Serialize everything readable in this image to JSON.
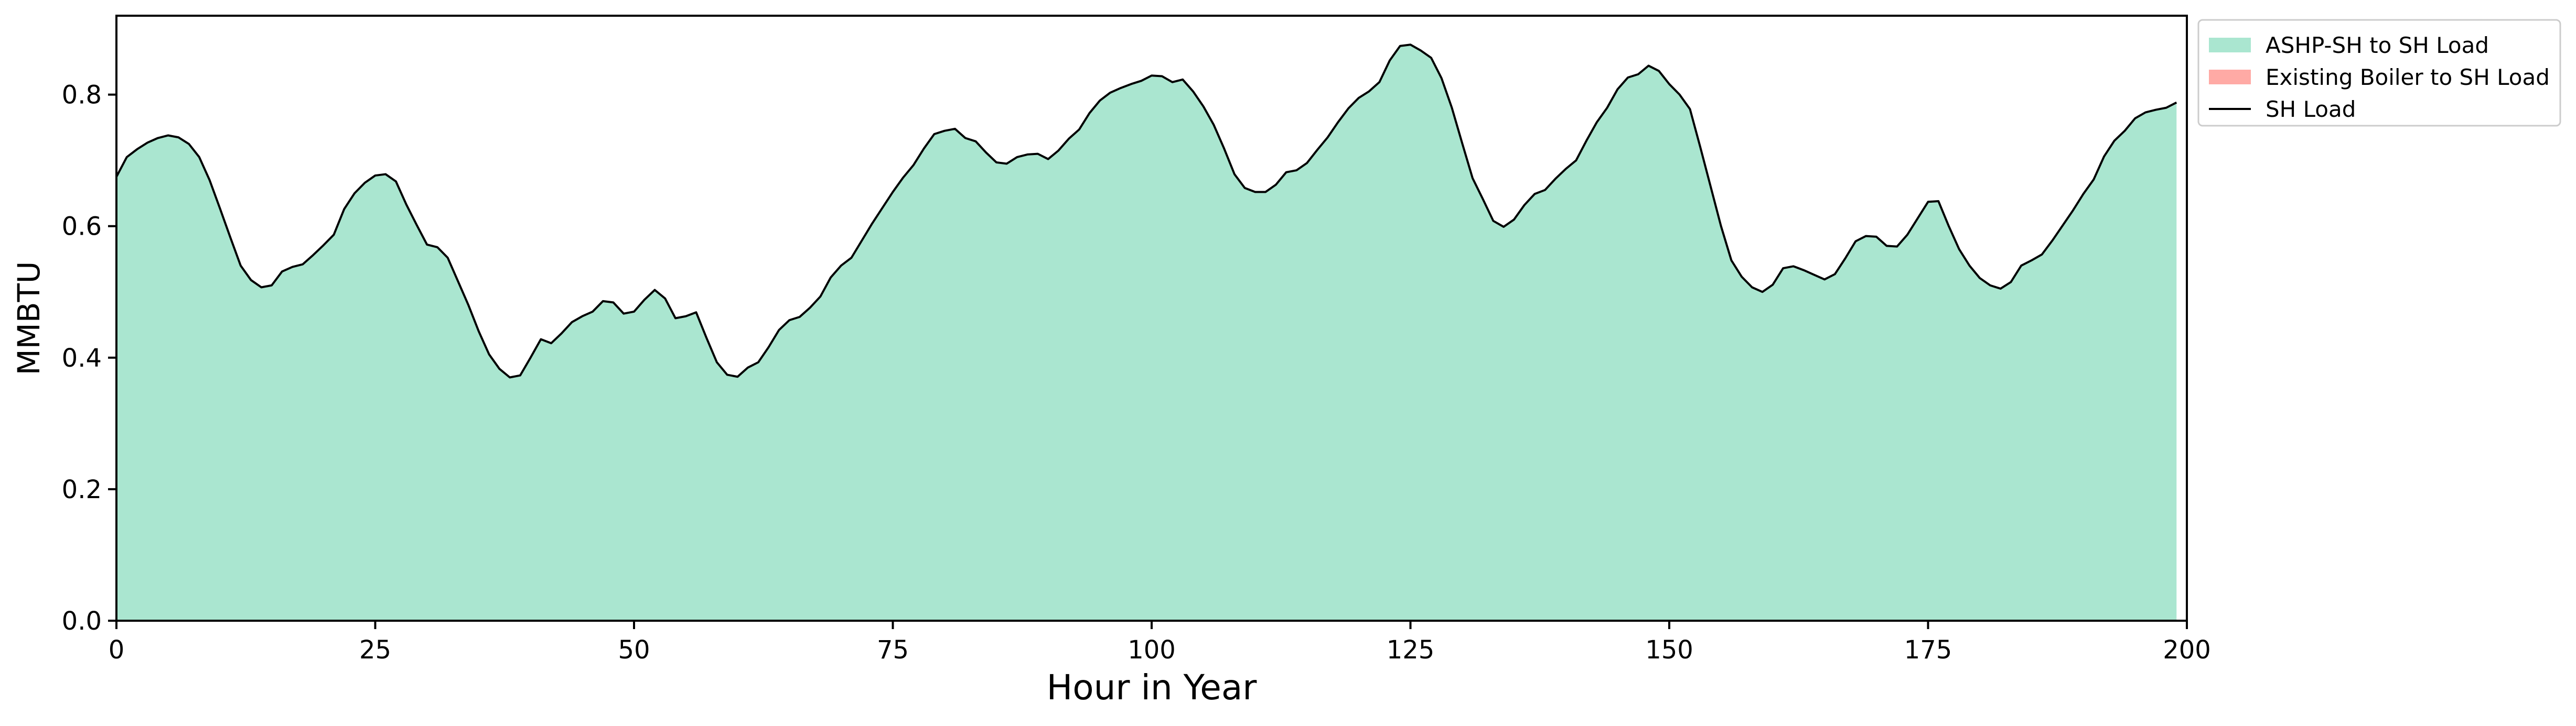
{
  "colors": {
    "ashp_fill": "#aae6d0",
    "boiler_fill": "#ffaaa5",
    "load_line": "#000000",
    "axes": "#000000",
    "legend_border": "#cccccc"
  },
  "chart_data": {
    "type": "area",
    "title": "",
    "xlabel": "Hour in Year",
    "ylabel": "MMBTU",
    "xlim": [
      0,
      200
    ],
    "ylim": [
      0,
      0.92
    ],
    "xticks": [
      0,
      25,
      50,
      75,
      100,
      125,
      150,
      175,
      200
    ],
    "xtick_labels": [
      "0",
      "25",
      "50",
      "75",
      "100",
      "125",
      "150",
      "175",
      "200"
    ],
    "yticks": [
      0.0,
      0.2,
      0.4,
      0.6,
      0.8
    ],
    "ytick_labels": [
      "0.0",
      "0.2",
      "0.4",
      "0.6",
      "0.8"
    ],
    "grid": false,
    "legend_position": "outside-top-right",
    "legend": [
      {
        "label": "ASHP-SH to SH Load",
        "kind": "area",
        "color": "#aae6d0"
      },
      {
        "label": "Existing Boiler to SH Load",
        "kind": "area",
        "color": "#ffaaa5"
      },
      {
        "label": "SH Load",
        "kind": "line",
        "color": "#000000"
      }
    ],
    "x": [
      0,
      1,
      2,
      3,
      4,
      5,
      6,
      7,
      8,
      9,
      10,
      11,
      12,
      13,
      14,
      15,
      16,
      17,
      18,
      19,
      20,
      21,
      22,
      23,
      24,
      25,
      26,
      27,
      28,
      29,
      30,
      31,
      32,
      33,
      34,
      35,
      36,
      37,
      38,
      39,
      40,
      41,
      42,
      43,
      44,
      45,
      46,
      47,
      48,
      49,
      50,
      51,
      52,
      53,
      54,
      55,
      56,
      57,
      58,
      59,
      60,
      61,
      62,
      63,
      64,
      65,
      66,
      67,
      68,
      69,
      70,
      71,
      72,
      73,
      74,
      75,
      76,
      77,
      78,
      79,
      80,
      81,
      82,
      83,
      84,
      85,
      86,
      87,
      88,
      89,
      90,
      91,
      92,
      93,
      94,
      95,
      96,
      97,
      98,
      99,
      100,
      101,
      102,
      103,
      104,
      105,
      106,
      107,
      108,
      109,
      110,
      111,
      112,
      113,
      114,
      115,
      116,
      117,
      118,
      119,
      120,
      121,
      122,
      123,
      124,
      125,
      126,
      127,
      128,
      129,
      130,
      131,
      132,
      133,
      134,
      135,
      136,
      137,
      138,
      139,
      140,
      141,
      142,
      143,
      144,
      145,
      146,
      147,
      148,
      149,
      150,
      151,
      152,
      153,
      154,
      155,
      156,
      157,
      158,
      159,
      160,
      161,
      162,
      163,
      164,
      165,
      166,
      167,
      168,
      169,
      170,
      171,
      172,
      173,
      174,
      175,
      176,
      177,
      178,
      179,
      180,
      181,
      182,
      183,
      184,
      185,
      186,
      187,
      188,
      189,
      190,
      191,
      192,
      193,
      194,
      195,
      196,
      197,
      198,
      199
    ],
    "series": [
      {
        "name": "ASHP-SH to SH Load",
        "type": "area",
        "values": [
          0.675,
          0.705,
          0.717,
          0.727,
          0.734,
          0.738,
          0.735,
          0.725,
          0.705,
          0.67,
          0.627,
          0.583,
          0.54,
          0.518,
          0.507,
          0.51,
          0.531,
          0.538,
          0.542,
          0.556,
          0.571,
          0.587,
          0.626,
          0.65,
          0.666,
          0.677,
          0.679,
          0.668,
          0.633,
          0.602,
          0.572,
          0.568,
          0.552,
          0.516,
          0.48,
          0.44,
          0.405,
          0.383,
          0.37,
          0.373,
          0.4,
          0.428,
          0.422,
          0.437,
          0.454,
          0.463,
          0.47,
          0.486,
          0.484,
          0.467,
          0.47,
          0.488,
          0.503,
          0.49,
          0.46,
          0.463,
          0.469,
          0.43,
          0.393,
          0.374,
          0.371,
          0.385,
          0.393,
          0.416,
          0.442,
          0.457,
          0.462,
          0.476,
          0.493,
          0.522,
          0.54,
          0.552,
          0.578,
          0.604,
          0.628,
          0.652,
          0.674,
          0.693,
          0.718,
          0.74,
          0.745,
          0.748,
          0.734,
          0.729,
          0.712,
          0.697,
          0.695,
          0.705,
          0.709,
          0.71,
          0.702,
          0.715,
          0.733,
          0.747,
          0.772,
          0.791,
          0.803,
          0.81,
          0.816,
          0.821,
          0.829,
          0.828,
          0.819,
          0.823,
          0.805,
          0.782,
          0.754,
          0.718,
          0.679,
          0.658,
          0.652,
          0.652,
          0.663,
          0.682,
          0.685,
          0.696,
          0.716,
          0.735,
          0.758,
          0.779,
          0.795,
          0.805,
          0.819,
          0.852,
          0.874,
          0.876,
          0.867,
          0.856,
          0.825,
          0.78,
          0.726,
          0.673,
          0.641,
          0.608,
          0.599,
          0.61,
          0.632,
          0.649,
          0.655,
          0.672,
          0.687,
          0.7,
          0.73,
          0.758,
          0.78,
          0.808,
          0.826,
          0.831,
          0.844,
          0.836,
          0.816,
          0.8,
          0.778,
          0.72,
          0.66,
          0.6,
          0.548,
          0.523,
          0.507,
          0.5,
          0.511,
          0.536,
          0.539,
          0.533,
          0.526,
          0.519,
          0.527,
          0.551,
          0.577,
          0.585,
          0.584,
          0.57,
          0.569,
          0.587,
          0.612,
          0.637,
          0.638,
          0.6,
          0.565,
          0.54,
          0.521,
          0.51,
          0.505,
          0.515,
          0.54,
          0.548,
          0.557,
          0.578,
          0.601,
          0.624,
          0.649,
          0.671,
          0.706,
          0.73,
          0.745,
          0.764,
          0.773,
          0.777,
          0.78,
          0.788
        ]
      },
      {
        "name": "Existing Boiler to SH Load",
        "type": "area",
        "values": [
          0,
          0,
          0,
          0,
          0,
          0,
          0,
          0,
          0,
          0,
          0,
          0,
          0,
          0,
          0,
          0,
          0,
          0,
          0,
          0,
          0,
          0,
          0,
          0,
          0,
          0,
          0,
          0,
          0,
          0,
          0,
          0,
          0,
          0,
          0,
          0,
          0,
          0,
          0,
          0,
          0,
          0,
          0,
          0,
          0,
          0,
          0,
          0,
          0,
          0,
          0,
          0,
          0,
          0,
          0,
          0,
          0,
          0,
          0,
          0,
          0,
          0,
          0,
          0,
          0,
          0,
          0,
          0,
          0,
          0,
          0,
          0,
          0,
          0,
          0,
          0,
          0,
          0,
          0,
          0,
          0,
          0,
          0,
          0,
          0,
          0,
          0,
          0,
          0,
          0,
          0,
          0,
          0,
          0,
          0,
          0,
          0,
          0,
          0,
          0,
          0,
          0,
          0,
          0,
          0,
          0,
          0,
          0,
          0,
          0,
          0,
          0,
          0,
          0,
          0,
          0,
          0,
          0,
          0,
          0,
          0,
          0,
          0,
          0,
          0,
          0,
          0,
          0,
          0,
          0,
          0,
          0,
          0,
          0,
          0,
          0,
          0,
          0,
          0,
          0,
          0,
          0,
          0,
          0,
          0,
          0,
          0,
          0,
          0,
          0,
          0,
          0,
          0,
          0,
          0,
          0,
          0,
          0,
          0,
          0,
          0,
          0,
          0,
          0,
          0,
          0,
          0,
          0,
          0,
          0,
          0,
          0,
          0,
          0,
          0,
          0,
          0,
          0,
          0,
          0,
          0,
          0,
          0,
          0,
          0,
          0,
          0,
          0,
          0,
          0,
          0,
          0,
          0,
          0,
          0,
          0,
          0,
          0,
          0,
          0
        ]
      },
      {
        "name": "SH Load",
        "type": "line",
        "values": [
          0.675,
          0.705,
          0.717,
          0.727,
          0.734,
          0.738,
          0.735,
          0.725,
          0.705,
          0.67,
          0.627,
          0.583,
          0.54,
          0.518,
          0.507,
          0.51,
          0.531,
          0.538,
          0.542,
          0.556,
          0.571,
          0.587,
          0.626,
          0.65,
          0.666,
          0.677,
          0.679,
          0.668,
          0.633,
          0.602,
          0.572,
          0.568,
          0.552,
          0.516,
          0.48,
          0.44,
          0.405,
          0.383,
          0.37,
          0.373,
          0.4,
          0.428,
          0.422,
          0.437,
          0.454,
          0.463,
          0.47,
          0.486,
          0.484,
          0.467,
          0.47,
          0.488,
          0.503,
          0.49,
          0.46,
          0.463,
          0.469,
          0.43,
          0.393,
          0.374,
          0.371,
          0.385,
          0.393,
          0.416,
          0.442,
          0.457,
          0.462,
          0.476,
          0.493,
          0.522,
          0.54,
          0.552,
          0.578,
          0.604,
          0.628,
          0.652,
          0.674,
          0.693,
          0.718,
          0.74,
          0.745,
          0.748,
          0.734,
          0.729,
          0.712,
          0.697,
          0.695,
          0.705,
          0.709,
          0.71,
          0.702,
          0.715,
          0.733,
          0.747,
          0.772,
          0.791,
          0.803,
          0.81,
          0.816,
          0.821,
          0.829,
          0.828,
          0.819,
          0.823,
          0.805,
          0.782,
          0.754,
          0.718,
          0.679,
          0.658,
          0.652,
          0.652,
          0.663,
          0.682,
          0.685,
          0.696,
          0.716,
          0.735,
          0.758,
          0.779,
          0.795,
          0.805,
          0.819,
          0.852,
          0.874,
          0.876,
          0.867,
          0.856,
          0.825,
          0.78,
          0.726,
          0.673,
          0.641,
          0.608,
          0.599,
          0.61,
          0.632,
          0.649,
          0.655,
          0.672,
          0.687,
          0.7,
          0.73,
          0.758,
          0.78,
          0.808,
          0.826,
          0.831,
          0.844,
          0.836,
          0.816,
          0.8,
          0.778,
          0.72,
          0.66,
          0.6,
          0.548,
          0.523,
          0.507,
          0.5,
          0.511,
          0.536,
          0.539,
          0.533,
          0.526,
          0.519,
          0.527,
          0.551,
          0.577,
          0.585,
          0.584,
          0.57,
          0.569,
          0.587,
          0.612,
          0.637,
          0.638,
          0.6,
          0.565,
          0.54,
          0.521,
          0.51,
          0.505,
          0.515,
          0.54,
          0.548,
          0.557,
          0.578,
          0.601,
          0.624,
          0.649,
          0.671,
          0.706,
          0.73,
          0.745,
          0.764,
          0.773,
          0.777,
          0.78,
          0.788
        ]
      }
    ]
  }
}
